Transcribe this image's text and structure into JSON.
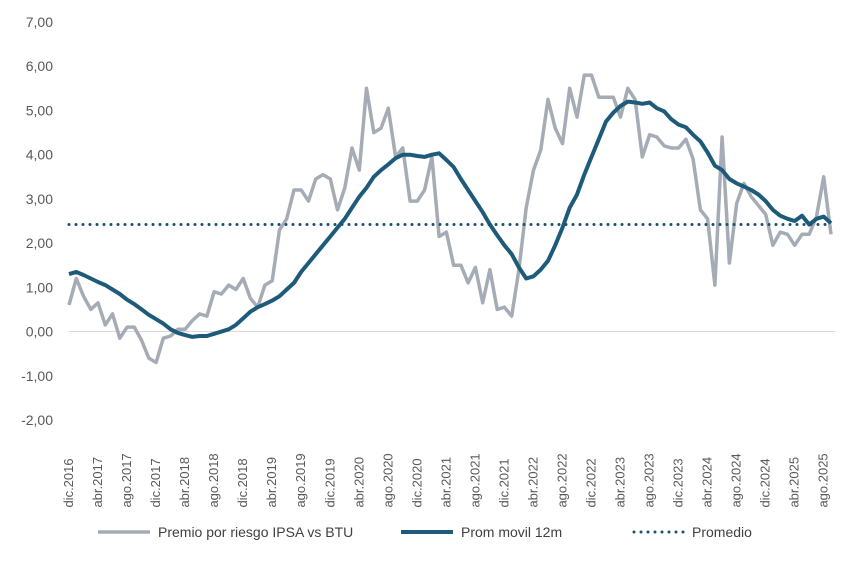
{
  "chart_data": {
    "type": "line",
    "title": "",
    "xlabel": "",
    "ylabel": "",
    "ylim": [
      -2,
      7
    ],
    "y_ticks": [
      -2,
      -1,
      0,
      1,
      2,
      3,
      4,
      5,
      6,
      7
    ],
    "y_tick_labels": [
      "-2,00",
      "-1,00",
      "0,00",
      "1,00",
      "2,00",
      "3,00",
      "4,00",
      "5,00",
      "6,00",
      "7,00"
    ],
    "x_start": "2016-12",
    "x_end": "2025-09",
    "x_tick_labels": [
      "dic.2016",
      "abr.2017",
      "ago.2017",
      "dic.2017",
      "abr.2018",
      "ago.2018",
      "dic.2018",
      "abr.2019",
      "ago.2019",
      "dic.2019",
      "abr.2020",
      "ago.2020",
      "dic.2020",
      "abr.2021",
      "ago.2021",
      "dic.2021",
      "abr.2022",
      "ago.2022",
      "dic.2022",
      "abr.2023",
      "ago.2023",
      "dic.2023",
      "abr.2024",
      "ago.2024",
      "dic.2024",
      "abr.2025",
      "ago.2025"
    ],
    "grid": false,
    "legend_position": "bottom",
    "series": [
      {
        "name": "Premio por riesgo IPSA vs BTU",
        "color": "#a5acb5",
        "style": "solid",
        "values": [
          0.6,
          1.2,
          0.8,
          0.5,
          0.65,
          0.15,
          0.4,
          -0.15,
          0.1,
          0.1,
          -0.2,
          -0.6,
          -0.7,
          -0.15,
          -0.1,
          0.05,
          0.05,
          0.25,
          0.4,
          0.35,
          0.9,
          0.85,
          1.05,
          0.95,
          1.2,
          0.75,
          0.55,
          1.05,
          1.15,
          2.3,
          2.55,
          3.2,
          3.2,
          2.95,
          3.45,
          3.55,
          3.45,
          2.75,
          3.25,
          4.15,
          3.65,
          5.5,
          4.5,
          4.6,
          5.05,
          3.95,
          4.15,
          2.95,
          2.95,
          3.2,
          3.95,
          2.15,
          2.25,
          1.5,
          1.5,
          1.1,
          1.45,
          0.65,
          1.4,
          0.5,
          0.55,
          0.35,
          1.4,
          2.8,
          3.65,
          4.1,
          5.25,
          4.6,
          4.25,
          5.5,
          4.85,
          5.8,
          5.8,
          5.3,
          5.3,
          5.3,
          4.85,
          5.5,
          5.25,
          3.95,
          4.45,
          4.4,
          4.2,
          4.15,
          4.15,
          4.35,
          3.9,
          2.75,
          2.55,
          1.05,
          4.4,
          1.55,
          2.9,
          3.35,
          3.05,
          2.85,
          2.65,
          1.95,
          2.25,
          2.2,
          1.95,
          2.2,
          2.2,
          2.6,
          3.5,
          2.2
        ]
      },
      {
        "name": "Prom movil 12m",
        "color": "#1e5a79",
        "style": "solid",
        "values": [
          1.3,
          1.35,
          1.28,
          1.2,
          1.12,
          1.05,
          0.95,
          0.85,
          0.72,
          0.62,
          0.5,
          0.38,
          0.28,
          0.18,
          0.05,
          -0.03,
          -0.08,
          -0.12,
          -0.1,
          -0.1,
          -0.05,
          0.0,
          0.05,
          0.15,
          0.3,
          0.45,
          0.55,
          0.62,
          0.7,
          0.8,
          0.95,
          1.1,
          1.35,
          1.55,
          1.75,
          1.95,
          2.15,
          2.35,
          2.55,
          2.8,
          3.05,
          3.25,
          3.5,
          3.65,
          3.78,
          3.92,
          4.0,
          4.0,
          3.97,
          3.95,
          4.0,
          4.03,
          3.88,
          3.72,
          3.45,
          3.2,
          2.95,
          2.7,
          2.42,
          2.18,
          1.95,
          1.75,
          1.45,
          1.2,
          1.25,
          1.4,
          1.6,
          1.95,
          2.35,
          2.8,
          3.1,
          3.55,
          3.95,
          4.35,
          4.75,
          4.95,
          5.1,
          5.2,
          5.18,
          5.15,
          5.18,
          5.05,
          4.98,
          4.8,
          4.68,
          4.62,
          4.45,
          4.3,
          4.05,
          3.75,
          3.65,
          3.45,
          3.35,
          3.28,
          3.2,
          3.1,
          2.95,
          2.75,
          2.62,
          2.55,
          2.5,
          2.62,
          2.42,
          2.55,
          2.6,
          2.45
        ]
      },
      {
        "name": "Promedio",
        "color": "#1b4f6b",
        "style": "dotted",
        "values": [
          2.42,
          2.42
        ]
      }
    ]
  }
}
